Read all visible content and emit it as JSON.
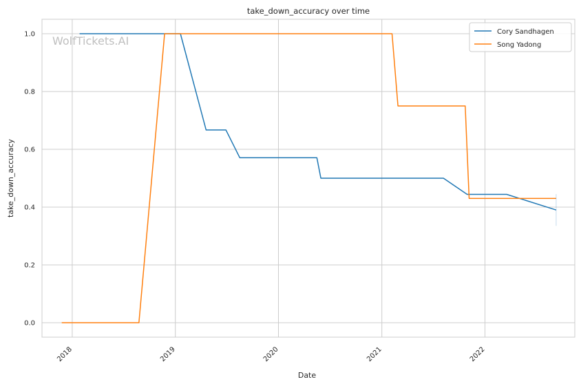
{
  "chart_data": {
    "type": "line",
    "title": "take_down_accuracy over time",
    "xlabel": "Date",
    "ylabel": "take_down_accuracy",
    "watermark": "WolfTickets.AI",
    "xlim": [
      "2017-09-16",
      "2022-11-15"
    ],
    "ylim": [
      -0.05,
      1.05
    ],
    "xticks": [
      {
        "date": "2018-01-01",
        "label": "2018"
      },
      {
        "date": "2019-01-01",
        "label": "2019"
      },
      {
        "date": "2020-01-01",
        "label": "2020"
      },
      {
        "date": "2021-01-01",
        "label": "2021"
      },
      {
        "date": "2022-01-01",
        "label": "2022"
      }
    ],
    "yticks": [
      {
        "value": 0.0,
        "label": "0.0"
      },
      {
        "value": 0.2,
        "label": "0.2"
      },
      {
        "value": 0.4,
        "label": "0.4"
      },
      {
        "value": 0.6,
        "label": "0.6"
      },
      {
        "value": 0.8,
        "label": "0.8"
      },
      {
        "value": 1.0,
        "label": "1.0"
      }
    ],
    "grid": true,
    "legend_position": "top-right",
    "series": [
      {
        "name": "Cory Sandhagen",
        "color": "#1f77b4",
        "x": [
          "2018-01-27",
          "2019-01-19",
          "2019-04-20",
          "2019-06-29",
          "2019-08-17",
          "2020-05-16",
          "2020-05-30",
          "2021-08-07",
          "2021-10-30",
          "2022-03-19",
          "2022-09-10"
        ],
        "y": [
          1.0,
          1.0,
          0.667,
          0.667,
          0.571,
          0.571,
          0.5,
          0.5,
          0.444,
          0.444,
          0.39
        ]
      },
      {
        "name": "Song Yadong",
        "color": "#ff7f0e",
        "x": [
          "2017-11-25",
          "2018-08-25",
          "2018-11-24",
          "2021-02-06",
          "2021-02-27",
          "2021-10-23",
          "2021-11-06",
          "2022-09-10"
        ],
        "y": [
          0.0,
          0.0,
          1.0,
          1.0,
          0.75,
          0.75,
          0.43,
          0.43
        ]
      }
    ]
  }
}
